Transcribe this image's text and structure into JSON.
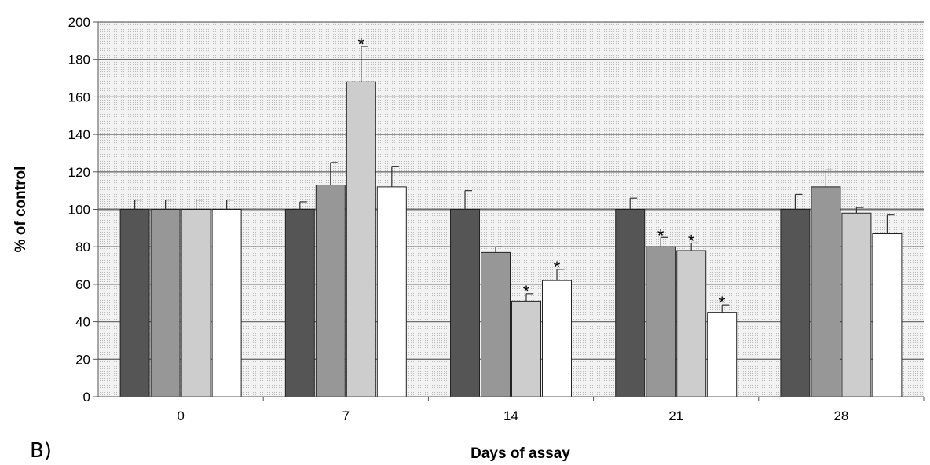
{
  "chart_data": {
    "type": "bar",
    "panel_label": "B)",
    "xlabel": "Days of assay",
    "ylabel": "% of control",
    "ylim": [
      0,
      200
    ],
    "yticks": [
      0,
      20,
      40,
      60,
      80,
      100,
      120,
      140,
      160,
      180,
      200
    ],
    "categories": [
      "0",
      "7",
      "14",
      "21",
      "28"
    ],
    "grid": true,
    "reference_line": 100,
    "series": [
      {
        "color": "#555555",
        "values": [
          100,
          100,
          100,
          100,
          100
        ],
        "errors": [
          5,
          4,
          10,
          6,
          8
        ],
        "significant": [
          false,
          false,
          false,
          false,
          false
        ]
      },
      {
        "color": "#979797",
        "values": [
          100,
          113,
          77,
          80,
          112
        ],
        "errors": [
          5,
          12,
          3,
          5,
          9
        ],
        "significant": [
          false,
          false,
          false,
          true,
          false
        ]
      },
      {
        "color": "#cdcdcd",
        "values": [
          100,
          168,
          51,
          78,
          98
        ],
        "errors": [
          5,
          19,
          4,
          4,
          3
        ],
        "significant": [
          false,
          true,
          true,
          true,
          false
        ]
      },
      {
        "color": "#ffffff",
        "values": [
          100,
          112,
          62,
          45,
          87
        ],
        "errors": [
          5,
          11,
          6,
          4,
          10
        ],
        "significant": [
          false,
          false,
          true,
          true,
          false
        ]
      }
    ],
    "significance_marker": "*"
  }
}
